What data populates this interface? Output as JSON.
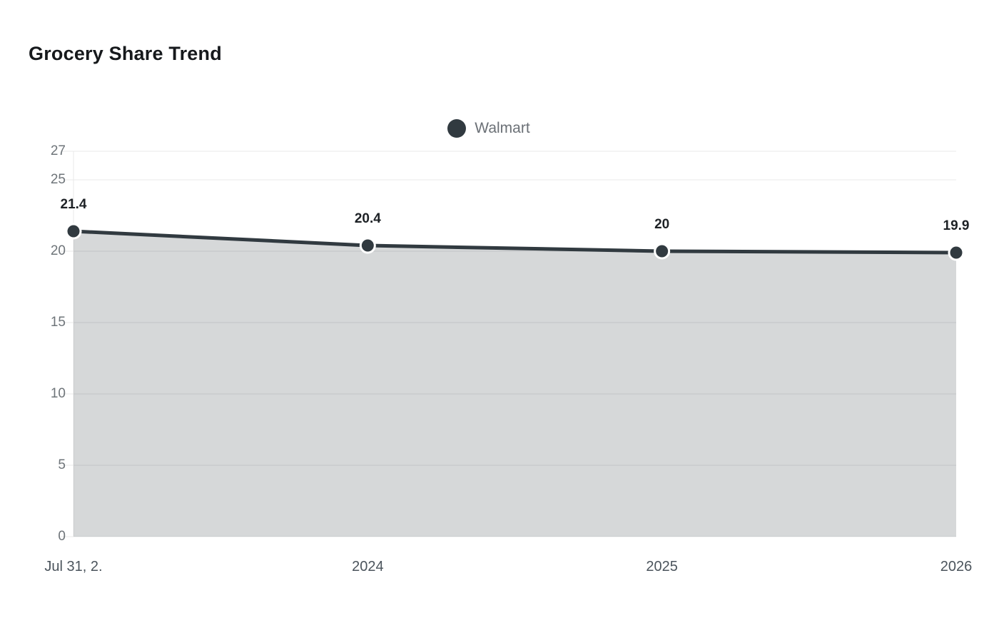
{
  "header": {
    "title": "Grocery Share Trend"
  },
  "legend": {
    "label": "Walmart",
    "marker_color": "#313a40"
  },
  "chart_data": {
    "type": "area",
    "title": "Grocery Share Trend",
    "categories": [
      "Jul 31, 2.",
      "2024",
      "2025",
      "2026"
    ],
    "series": [
      {
        "name": "Walmart",
        "values": [
          21.4,
          20.4,
          20,
          19.9
        ],
        "color": "#313a40",
        "fill": "rgba(49,58,64,0.2)"
      }
    ],
    "data_labels": [
      "21.4",
      "20.4",
      "20",
      "19.9"
    ],
    "yticks": [
      0,
      5,
      10,
      15,
      20,
      25,
      27
    ],
    "ylim": [
      0,
      27
    ],
    "grid": "horizontal",
    "gridline_color": "#e8e8e8",
    "legend_position": "top-center",
    "xlabel": "",
    "ylabel": ""
  }
}
